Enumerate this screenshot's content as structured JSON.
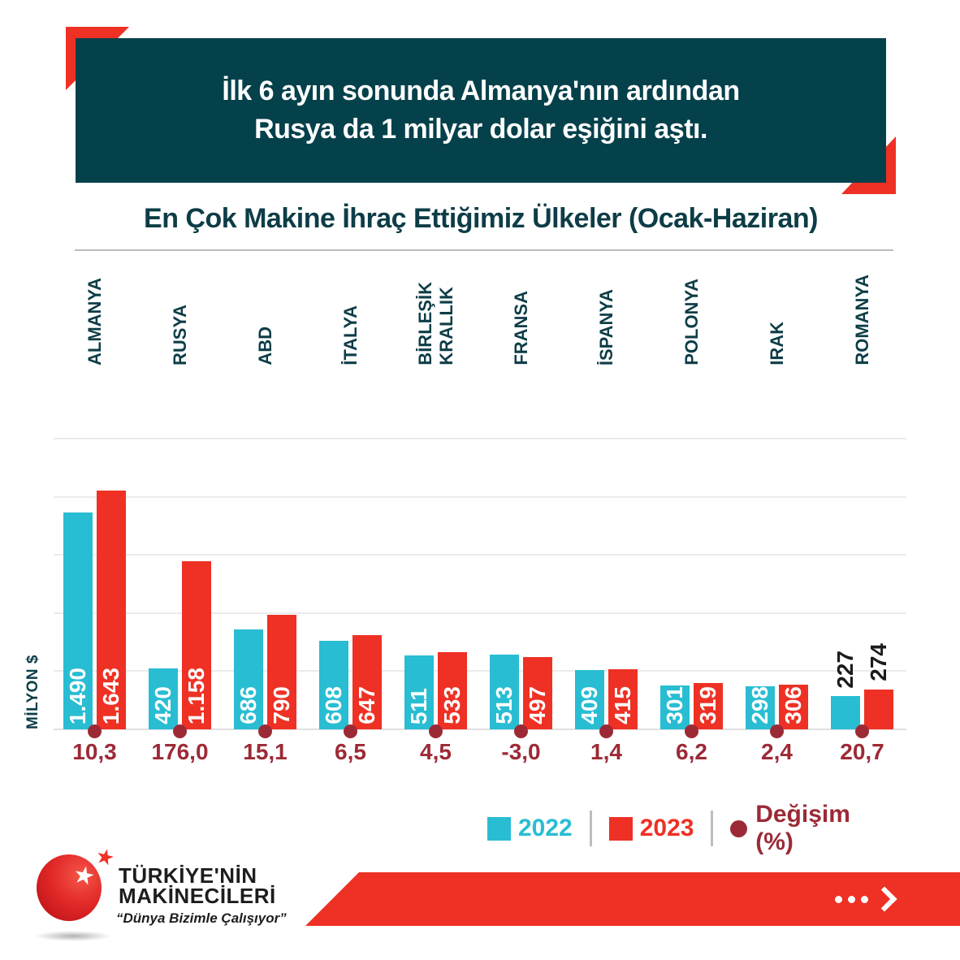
{
  "banner": {
    "line1": "İlk 6 ayın sonunda Almanya'nın ardından",
    "line2": "Rusya da 1 milyar dolar eşiğini aştı."
  },
  "title": "En Çok Makine İhraç Ettiğimiz Ülkeler (Ocak-Haziran)",
  "chart_data": {
    "type": "bar",
    "title": "En Çok Makine İhraç Ettiğimiz Ülkeler (Ocak-Haziran)",
    "categories": [
      "ALMANYA",
      "RUSYA",
      "ABD",
      "İTALYA",
      "BİRLEŞİK\nKRALLIK",
      "FRANSA",
      "İSPANYA",
      "POLONYA",
      "IRAK",
      "ROMANYA"
    ],
    "series": [
      {
        "name": "2022",
        "color": "#29bdd3",
        "values": [
          1490,
          420,
          686,
          608,
          511,
          513,
          409,
          301,
          298,
          227
        ],
        "value_labels": [
          "1.490",
          "420",
          "686",
          "608",
          "511",
          "513",
          "409",
          "301",
          "298",
          "227"
        ]
      },
      {
        "name": "2023",
        "color": "#ee3124",
        "values": [
          1643,
          1158,
          790,
          647,
          533,
          497,
          415,
          319,
          306,
          274
        ],
        "value_labels": [
          "1.643",
          "1.158",
          "790",
          "647",
          "533",
          "497",
          "415",
          "319",
          "306",
          "274"
        ]
      }
    ],
    "change_series": {
      "name": "Değişim (%)",
      "color": "#9c2a36",
      "values": [
        "10,3",
        "176,0",
        "15,1",
        "6,5",
        "4,5",
        "-3,0",
        "1,4",
        "6,2",
        "2,4",
        "20,7"
      ]
    },
    "ylabel": "MİLYON $",
    "ylim": [
      0,
      2000
    ],
    "gridlines": [
      0,
      400,
      800,
      1200,
      1600,
      2000
    ],
    "legend_position": "bottom-right",
    "legend": [
      {
        "label": "2022",
        "color": "#29bdd3",
        "shape": "square"
      },
      {
        "label": "2023",
        "color": "#ee3124",
        "shape": "square"
      },
      {
        "label": "Değişim (%)",
        "color": "#9c2a36",
        "shape": "circle"
      }
    ]
  },
  "footer": {
    "brand_line1": "TÜRKİYE'NİN",
    "brand_line2": "MAKİNECİLERİ",
    "slogan": "“Dünya Bizimle Çalışıyor”",
    "star": "★"
  },
  "colors": {
    "banner_bg": "#05414b",
    "accent_red": "#ee3124",
    "accent_cyan": "#29bdd3",
    "accent_dark_red": "#9c2a36",
    "teal_text": "#0d3d47"
  }
}
